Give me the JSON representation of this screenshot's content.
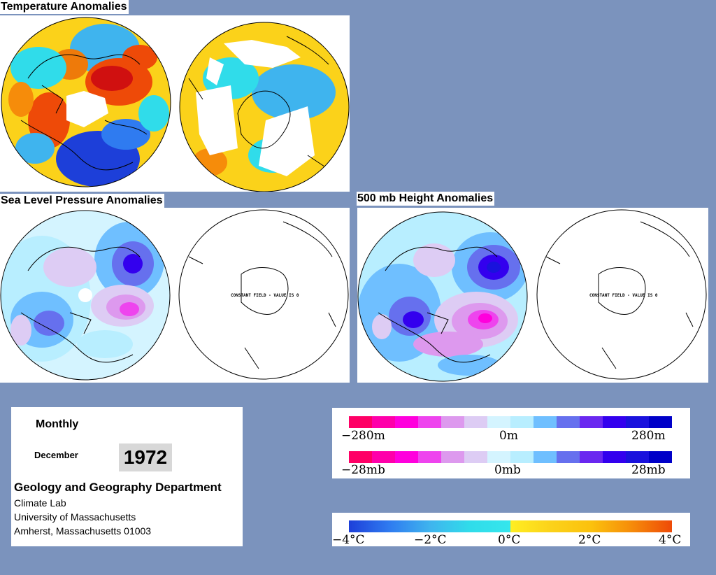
{
  "panels": {
    "temperature_title": "Temperature Anomalies",
    "slp_title": "Sea Level Pressure Anomalies",
    "height_title": "500 mb Height Anomalies",
    "constant_field_text": "CONSTANT FIELD - VALUE IS 0"
  },
  "info": {
    "period": "Monthly",
    "month": "December",
    "year": "1972",
    "department": "Geology and Geography Department",
    "lab": "Climate Lab",
    "university": "University of Massachusetts",
    "address": "Amherst, Massachusetts 01003"
  },
  "legends": {
    "height": {
      "min": "−280m",
      "mid": "0m",
      "max": "280m"
    },
    "pressure": {
      "min": "−28mb",
      "mid": "0mb",
      "max": "28mb"
    },
    "temperature": {
      "t0": "−4°C",
      "t1": "−2°C",
      "t2": "0°C",
      "t3": "2°C",
      "t4": "4°C"
    }
  },
  "colors": {
    "background": "#7b93bd",
    "anomaly_scale": [
      "#ff0066",
      "#ff00aa",
      "#ff00dd",
      "#ee44ee",
      "#dd99ee",
      "#ddccf4",
      "#d4f4ff",
      "#b8eeff",
      "#6fbfff",
      "#6670ee",
      "#6a28f0",
      "#3300ee",
      "#1a12dd",
      "#0000c8"
    ],
    "temperature_scale": [
      "#1d3fd9",
      "#2f7bf0",
      "#3fb4ee",
      "#30dcea",
      "#ffee22",
      "#fbc10d",
      "#f68c0a",
      "#ee4a08",
      "#d01010"
    ]
  }
}
